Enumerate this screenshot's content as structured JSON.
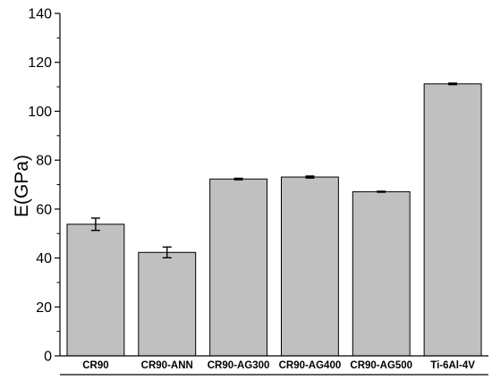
{
  "chart_data": {
    "type": "bar",
    "title": "",
    "xlabel": "",
    "ylabel": "E(GPa)",
    "categories": [
      "CR90",
      "CR90-ANN",
      "CR90-AG300",
      "CR90-AG400",
      "CR90-AG500",
      "Ti-6Al-4V"
    ],
    "values": [
      53.8,
      42.3,
      72.3,
      73.1,
      67.1,
      111.2
    ],
    "errors": [
      2.5,
      2.2,
      0.3,
      0.4,
      0.2,
      0.3
    ],
    "ylim": [
      0,
      140
    ],
    "yticks": [
      0,
      20,
      40,
      60,
      80,
      100,
      120,
      140
    ],
    "grid": false,
    "legend": "none",
    "colors": {
      "bar_fill": "#c0c0c0",
      "bar_stroke": "#000000",
      "axis": "#000000",
      "error_bar": "#000000"
    }
  }
}
